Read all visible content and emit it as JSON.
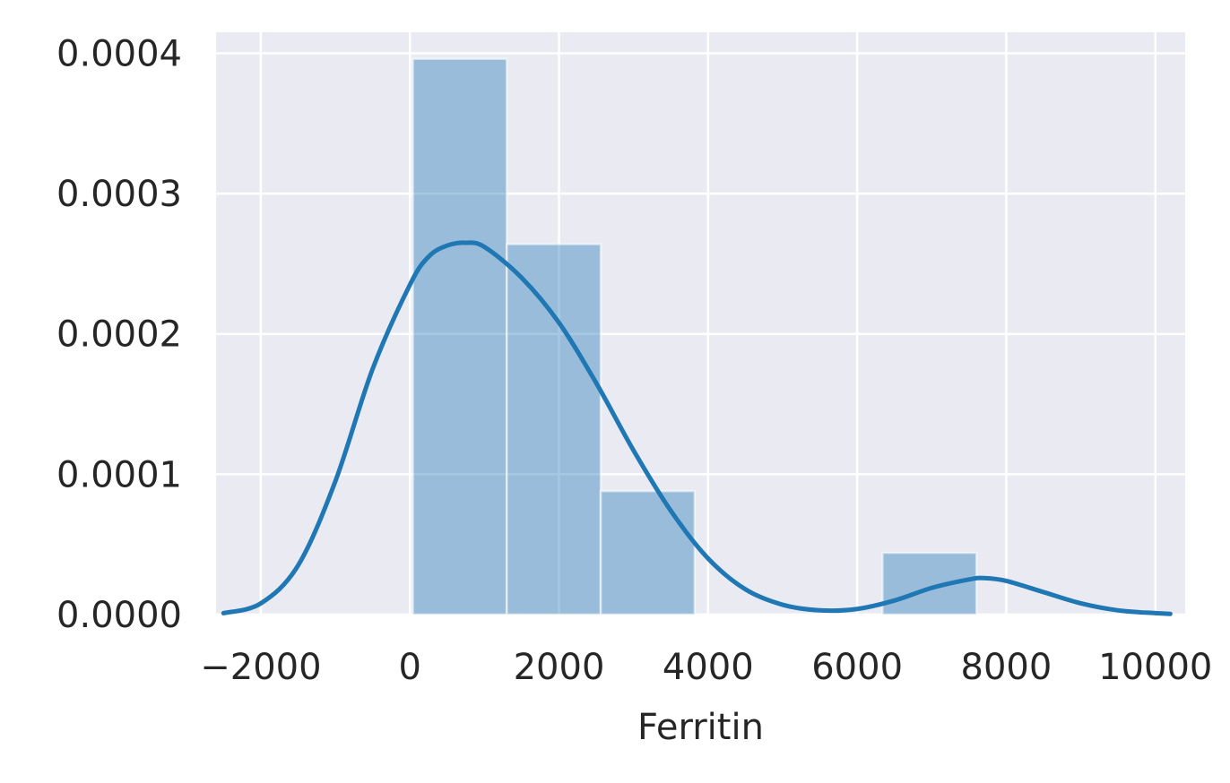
{
  "chart_data": {
    "type": "bar",
    "subtype": "histogram-with-kde",
    "title": "",
    "xlabel": "Ferritin",
    "ylabel": "",
    "xlim": [
      -2600,
      10400
    ],
    "ylim": [
      0,
      0.000415
    ],
    "grid": true,
    "colors": {
      "background": "#eaeaf2",
      "grid": "#ffffff",
      "bar_fill": "#1f77b4",
      "bar_opacity": 0.4,
      "kde_line": "#1f77b4",
      "text": "#262626"
    },
    "x_ticks": [
      {
        "value": -2000,
        "label": "−2000"
      },
      {
        "value": 0,
        "label": "0"
      },
      {
        "value": 2000,
        "label": "2000"
      },
      {
        "value": 4000,
        "label": "4000"
      },
      {
        "value": 6000,
        "label": "6000"
      },
      {
        "value": 8000,
        "label": "8000"
      },
      {
        "value": 10000,
        "label": "10000"
      }
    ],
    "y_ticks": [
      {
        "value": 0,
        "label": "0.0000"
      },
      {
        "value": 0.0001,
        "label": "0.0001"
      },
      {
        "value": 0.0002,
        "label": "0.0002"
      },
      {
        "value": 0.0003,
        "label": "0.0003"
      },
      {
        "value": 0.0004,
        "label": "0.0004"
      }
    ],
    "bins": [
      {
        "x0": 40,
        "x1": 1300,
        "density": 0.000396
      },
      {
        "x0": 1300,
        "x1": 2560,
        "density": 0.000264
      },
      {
        "x0": 2560,
        "x1": 3820,
        "density": 8.8e-05
      },
      {
        "x0": 3820,
        "x1": 5080,
        "density": 0
      },
      {
        "x0": 5080,
        "x1": 6340,
        "density": 0
      },
      {
        "x0": 6340,
        "x1": 7600,
        "density": 4.4e-05
      }
    ],
    "kde": {
      "x": [
        -2500,
        -2000,
        -1500,
        -1000,
        -500,
        0,
        250,
        500,
        750,
        1000,
        1500,
        2000,
        2500,
        3000,
        3500,
        4000,
        4500,
        5000,
        5500,
        6000,
        6500,
        7000,
        7500,
        7700,
        8000,
        8500,
        9000,
        9500,
        10000,
        10200
      ],
      "y": [
        1e-06,
        8e-06,
        3.5e-05,
        9.5e-05,
        0.000175,
        0.000235,
        0.000255,
        0.000263,
        0.000265,
        0.000262,
        0.00024,
        0.000208,
        0.000165,
        0.000117,
        7.4e-05,
        4e-05,
        1.8e-05,
        7e-06,
        3e-06,
        4e-06,
        1e-05,
        1.9e-05,
        2.5e-05,
        2.6e-05,
        2.4e-05,
        1.6e-05,
        8e-06,
        3e-06,
        1e-06,
        5e-07
      ]
    }
  }
}
